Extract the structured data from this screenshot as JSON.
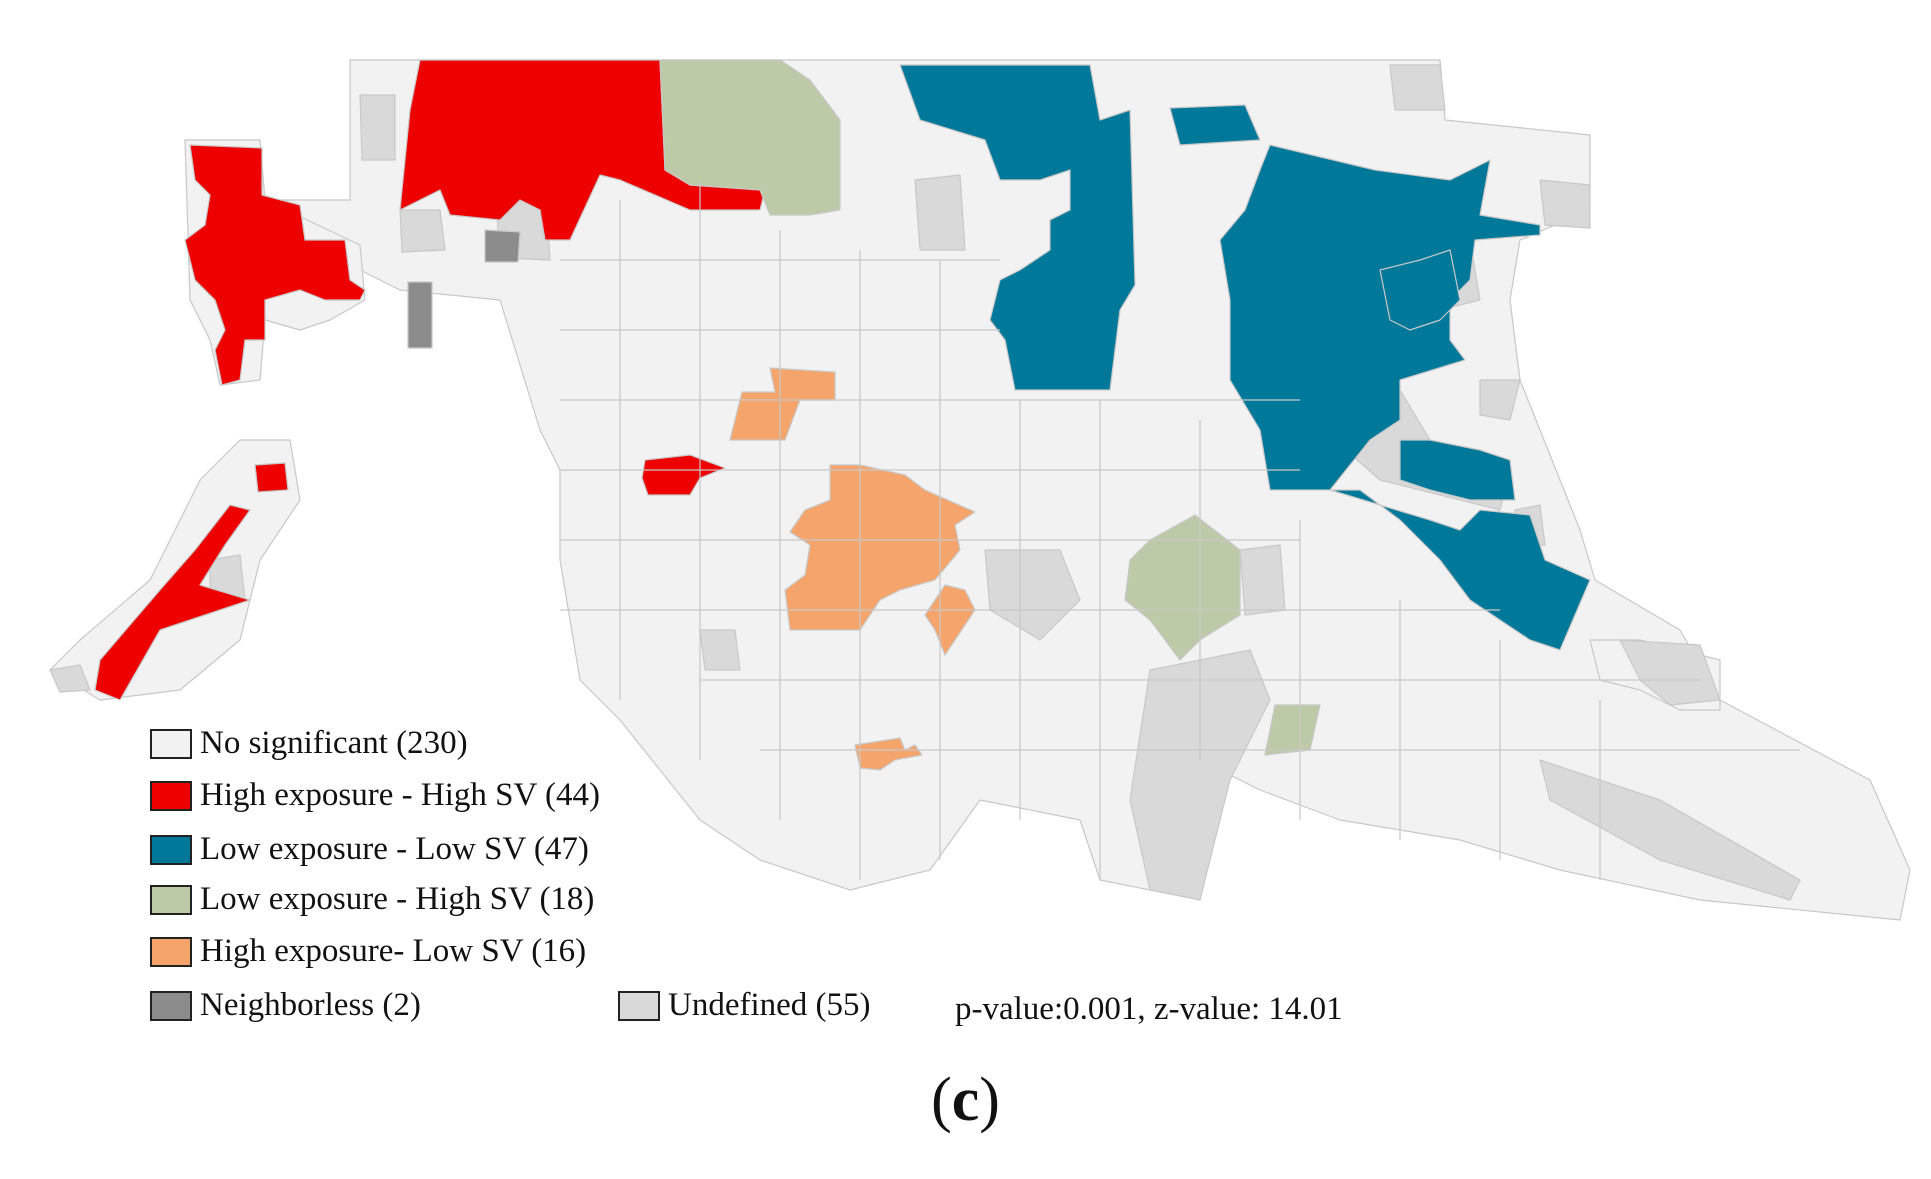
{
  "colors": {
    "no_significant": "#f2f2f2",
    "high_high": "#ee0000",
    "low_low": "#00789a",
    "low_high": "#bccaa8",
    "high_low": "#f5a56b",
    "neighborless": "#8c8c8c",
    "undefined": "#d9d9d9"
  },
  "legend": {
    "items": [
      {
        "key": "no_significant",
        "label": "No significant (230)"
      },
      {
        "key": "high_high",
        "label": "High exposure - High SV (44)"
      },
      {
        "key": "low_low",
        "label": "Low exposure - Low SV (47)"
      },
      {
        "key": "low_high",
        "label": "Low exposure - High SV (18)"
      },
      {
        "key": "high_low",
        "label": "High exposure- Low SV (16)"
      },
      {
        "key": "neighborless",
        "label": "Neighborless (2)"
      },
      {
        "key": "undefined",
        "label": "Undefined (55)"
      }
    ],
    "stats": "p-value:0.001, z-value: 14.01"
  },
  "caption": {
    "open": "(",
    "letter": "c",
    "close": ")"
  }
}
